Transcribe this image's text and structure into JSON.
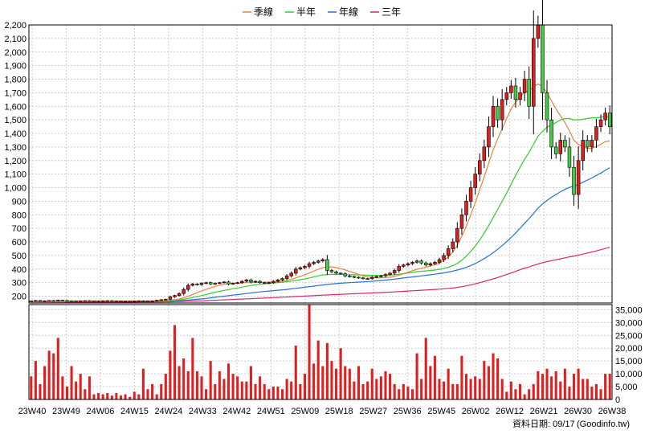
{
  "chart_data": {
    "type": "candlestick",
    "legend": [
      "季線",
      "半年",
      "年線",
      "三年"
    ],
    "colors": {
      "季線": "#e8823a",
      "半年": "#33cc33",
      "年線": "#2a6fd6",
      "三年": "#d6246e",
      "up": "#e02020",
      "down": "#44cc44",
      "volume": "#e02020",
      "grid": "#cccccc"
    },
    "x_ticks": [
      "23W40",
      "23W49",
      "24W06",
      "24W15",
      "24W24",
      "24W33",
      "24W42",
      "24W51",
      "25W09",
      "25W18",
      "25W27",
      "25W36",
      "25W45",
      "26W02",
      "26W12",
      "26W21",
      "26W30",
      "26W38"
    ],
    "price_axis": {
      "ylim": [
        150,
        2200
      ],
      "ticks": [
        200,
        300,
        400,
        500,
        600,
        700,
        800,
        900,
        1000,
        1100,
        1200,
        1300,
        1400,
        1500,
        1600,
        1700,
        1800,
        1900,
        2000,
        2100,
        2200
      ]
    },
    "volume_axis": {
      "ylim": [
        0,
        37000
      ],
      "ticks": [
        0,
        5000,
        10000,
        15000,
        20000,
        25000,
        30000,
        35000
      ]
    },
    "close": [
      165,
      168,
      163,
      166,
      168,
      165,
      170,
      168,
      166,
      165,
      164,
      166,
      167,
      165,
      164,
      163,
      166,
      167,
      165,
      164,
      163,
      163,
      162,
      164,
      166,
      165,
      164,
      165,
      170,
      174,
      178,
      195,
      205,
      220,
      250,
      280,
      290,
      285,
      295,
      300,
      290,
      295,
      300,
      305,
      290,
      295,
      300,
      310,
      320,
      305,
      310,
      300,
      295,
      300,
      310,
      320,
      330,
      350,
      370,
      400,
      410,
      420,
      440,
      450,
      460,
      470,
      390,
      380,
      370,
      365,
      350,
      345,
      340,
      335,
      330,
      330,
      340,
      345,
      350,
      360,
      370,
      390,
      420,
      430,
      440,
      450,
      460,
      445,
      430,
      440,
      450,
      470,
      500,
      550,
      600,
      700,
      800,
      900,
      1000,
      1100,
      1200,
      1300,
      1450,
      1600,
      1500,
      1650,
      1700,
      1750,
      1650,
      1700,
      1800,
      1600,
      2100,
      2200,
      1700,
      1500,
      1300,
      1250,
      1350,
      1300,
      1150,
      950,
      1200,
      1350,
      1300,
      1350,
      1450,
      1500,
      1550,
      1450
    ],
    "ma_quarter": [
      160,
      161,
      162,
      163,
      163,
      163,
      164,
      164,
      164,
      164,
      164,
      164,
      164,
      164,
      164,
      164,
      164,
      164,
      164,
      164,
      164,
      164,
      164,
      164,
      164,
      164,
      164,
      164,
      165,
      165,
      167,
      170,
      174,
      179,
      188,
      200,
      213,
      226,
      238,
      250,
      262,
      272,
      281,
      288,
      292,
      295,
      296,
      298,
      300,
      300,
      301,
      302,
      303,
      304,
      305,
      306,
      310,
      317,
      325,
      335,
      346,
      358,
      371,
      385,
      399,
      410,
      417,
      416,
      411,
      403,
      394,
      383,
      372,
      361,
      351,
      342,
      338,
      336,
      336,
      337,
      340,
      346,
      355,
      365,
      377,
      388,
      399,
      406,
      414,
      423,
      432,
      445,
      465,
      490,
      525,
      575,
      640,
      715,
      800,
      890,
      985,
      1080,
      1180,
      1280,
      1360,
      1435,
      1510,
      1580,
      1630,
      1670,
      1705,
      1715,
      1745,
      1765,
      1745,
      1700,
      1640,
      1580,
      1530,
      1480,
      1420,
      1350,
      1320,
      1300,
      1290,
      1290,
      1305,
      1320,
      1340,
      1345
    ],
    "ma_half": [
      160,
      160,
      161,
      161,
      162,
      162,
      163,
      163,
      163,
      163,
      163,
      163,
      163,
      163,
      163,
      163,
      163,
      163,
      163,
      163,
      163,
      163,
      163,
      163,
      163,
      163,
      163,
      163,
      164,
      164,
      165,
      167,
      169,
      172,
      177,
      183,
      190,
      197,
      205,
      213,
      221,
      229,
      236,
      243,
      249,
      255,
      261,
      267,
      273,
      279,
      284,
      288,
      291,
      294,
      297,
      300,
      303,
      307,
      311,
      316,
      322,
      328,
      335,
      342,
      350,
      357,
      360,
      361,
      361,
      361,
      360,
      359,
      358,
      357,
      356,
      355,
      354,
      354,
      354,
      355,
      356,
      358,
      362,
      366,
      371,
      376,
      381,
      384,
      387,
      390,
      393,
      398,
      404,
      413,
      425,
      442,
      465,
      495,
      530,
      570,
      615,
      665,
      720,
      780,
      840,
      900,
      960,
      1025,
      1090,
      1150,
      1210,
      1260,
      1320,
      1380,
      1415,
      1445,
      1465,
      1480,
      1500,
      1510,
      1510,
      1500,
      1500,
      1505,
      1510,
      1515,
      1515,
      1520,
      1525,
      1520
    ],
    "ma_year": [
      160,
      160,
      160,
      160,
      161,
      161,
      161,
      161,
      161,
      161,
      161,
      161,
      162,
      162,
      162,
      162,
      162,
      162,
      162,
      162,
      162,
      162,
      162,
      162,
      162,
      162,
      162,
      162,
      163,
      163,
      164,
      165,
      166,
      167,
      169,
      171,
      174,
      177,
      180,
      184,
      188,
      192,
      196,
      200,
      204,
      208,
      212,
      216,
      220,
      224,
      228,
      232,
      235,
      238,
      241,
      244,
      247,
      250,
      254,
      258,
      262,
      266,
      270,
      274,
      279,
      283,
      287,
      290,
      293,
      296,
      298,
      300,
      302,
      304,
      306,
      308,
      310,
      313,
      316,
      319,
      322,
      326,
      330,
      334,
      338,
      342,
      346,
      350,
      354,
      358,
      362,
      367,
      372,
      378,
      385,
      393,
      402,
      413,
      426,
      441,
      458,
      477,
      498,
      521,
      546,
      573,
      602,
      633,
      666,
      701,
      738,
      772,
      810,
      850,
      880,
      906,
      929,
      950,
      970,
      988,
      1002,
      1012,
      1025,
      1040,
      1056,
      1072,
      1090,
      1108,
      1128,
      1148
    ],
    "ma_3year": [
      150,
      150,
      151,
      151,
      151,
      152,
      152,
      152,
      153,
      153,
      153,
      153,
      154,
      154,
      154,
      154,
      155,
      155,
      155,
      155,
      156,
      156,
      156,
      156,
      157,
      157,
      157,
      157,
      158,
      158,
      159,
      159,
      160,
      161,
      162,
      163,
      164,
      165,
      166,
      168,
      169,
      170,
      172,
      173,
      175,
      176,
      178,
      179,
      181,
      182,
      184,
      185,
      187,
      188,
      190,
      191,
      193,
      194,
      196,
      198,
      199,
      201,
      203,
      204,
      206,
      208,
      209,
      211,
      212,
      214,
      215,
      217,
      218,
      220,
      221,
      223,
      224,
      226,
      227,
      229,
      230,
      232,
      234,
      236,
      238,
      240,
      242,
      244,
      246,
      248,
      250,
      252,
      255,
      258,
      261,
      265,
      270,
      276,
      283,
      291,
      300,
      309,
      318,
      328,
      338,
      349,
      360,
      371,
      383,
      395,
      406,
      416,
      427,
      438,
      447,
      455,
      462,
      469,
      476,
      483,
      490,
      496,
      503,
      510,
      518,
      526,
      534,
      543,
      552,
      561
    ],
    "volume": [
      9000,
      15000,
      6000,
      13000,
      19000,
      18000,
      24000,
      9000,
      5000,
      13000,
      7000,
      10000,
      4000,
      9000,
      2000,
      2500,
      2000,
      2500,
      1500,
      2500,
      1500,
      2000,
      1000,
      3000,
      2000,
      12000,
      4000,
      6000,
      2000,
      6000,
      10000,
      19000,
      29000,
      13000,
      16000,
      11000,
      24000,
      11000,
      9000,
      4000,
      15000,
      6000,
      11000,
      8000,
      14000,
      10000,
      9000,
      7000,
      7000,
      13000,
      6000,
      9000,
      6000,
      4000,
      5000,
      5000,
      4000,
      8000,
      7000,
      21000,
      6000,
      10000,
      37000,
      14000,
      23000,
      13000,
      22000,
      15000,
      12000,
      20000,
      13000,
      12000,
      7000,
      13000,
      6000,
      7000,
      12000,
      8000,
      9000,
      11000,
      10000,
      6000,
      4000,
      6000,
      5000,
      4000,
      18000,
      8000,
      24000,
      13000,
      17000,
      8000,
      7000,
      12000,
      6000,
      6000,
      17000,
      10000,
      8000,
      9000,
      8000,
      15000,
      13000,
      18000,
      16000,
      8000,
      3000,
      7000,
      4000,
      6000,
      2000,
      4000,
      6000,
      11000,
      10000,
      12000,
      9000,
      11000,
      7000,
      12000,
      5000,
      10000,
      12000,
      8000,
      8000,
      5000,
      6000,
      4000,
      10000,
      10000
    ],
    "footer_label": "資料日期: 09/17",
    "footer_source": "(Goodinfo.tw)"
  }
}
